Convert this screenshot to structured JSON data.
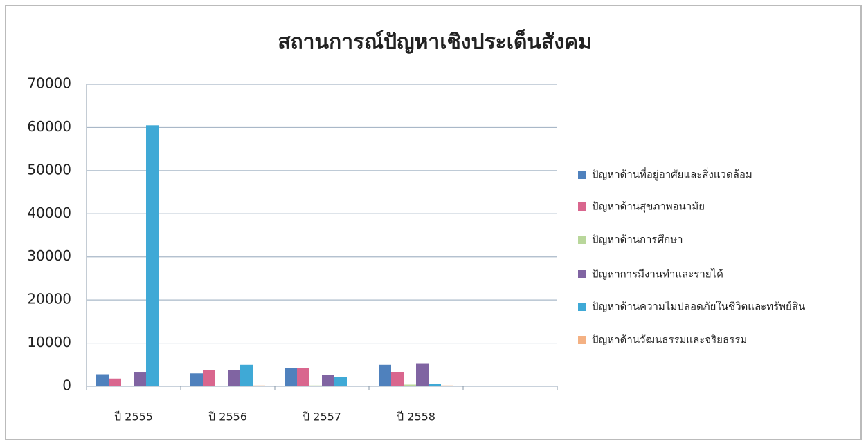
{
  "chart_data": {
    "type": "bar",
    "title": "สถานการณ์ปัญหาเชิงประเด็นสังคม",
    "categories": [
      "ปี 2555",
      "ปี 2556",
      "ปี 2557",
      "ปี 2558",
      null
    ],
    "series": [
      {
        "name": "ปัญหาด้านที่อยู่อาศัยและสิ่งแวดล้อม",
        "color": "#4f81bd",
        "values": [
          2800,
          3000,
          4200,
          5000,
          null
        ]
      },
      {
        "name": "ปัญหาด้านสุขภาพอนามัย",
        "color": "#d9668e",
        "values": [
          1800,
          3800,
          4300,
          3300,
          null
        ]
      },
      {
        "name": "ปัญหาด้านการศึกษา",
        "color": "#b9d79b",
        "values": [
          100,
          100,
          200,
          400,
          null
        ]
      },
      {
        "name": "ปัญหาการมีงานทำและรายได้",
        "color": "#8064a2",
        "values": [
          3200,
          3800,
          2700,
          5200,
          null
        ]
      },
      {
        "name": "ปัญหาด้านความไม่ปลอดภัยในชีวิตและทรัพย์สิน",
        "color": "#3fa9d6",
        "values": [
          60500,
          5000,
          2100,
          600,
          null
        ]
      },
      {
        "name": "ปัญหาด้านวัฒนธรรมและจริยธรรม",
        "color": "#f4b183",
        "values": [
          100,
          200,
          100,
          200,
          null
        ]
      }
    ],
    "ylim": [
      0,
      70000
    ],
    "yticks": [
      0,
      10000,
      20000,
      30000,
      40000,
      50000,
      60000,
      70000
    ],
    "grid": true,
    "legend": "right"
  }
}
